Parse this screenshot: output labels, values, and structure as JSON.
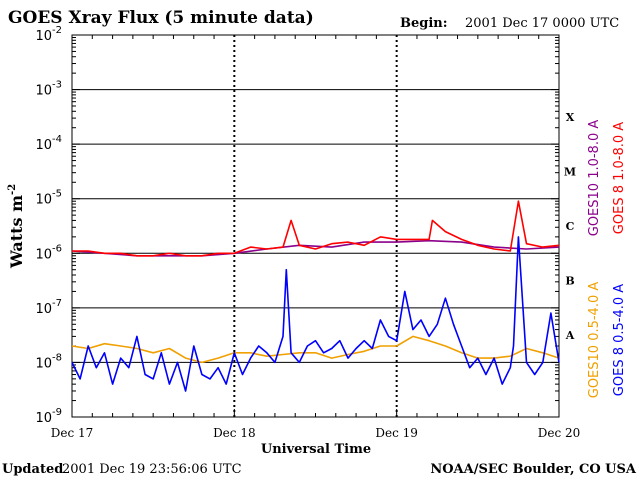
{
  "chart_data": {
    "type": "line",
    "title": "GOES Xray Flux (5 minute data)",
    "begin_label": "Begin:",
    "begin_value": "2001 Dec 17 0000 UTC",
    "xlabel": "Universal Time",
    "ylabel": "Watts m",
    "ylabel_sup": "-2",
    "x_tick_labels": [
      "Dec 17",
      "Dec 18",
      "Dec 19",
      "Dec 20"
    ],
    "xlim": [
      "2001-12-17T00:00",
      "2001-12-20T00:00"
    ],
    "y_scale": "log",
    "ylim": [
      1e-09,
      0.01
    ],
    "y_ticks": [
      {
        "base": "10",
        "exp": "-2"
      },
      {
        "base": "10",
        "exp": "-3"
      },
      {
        "base": "10",
        "exp": "-4"
      },
      {
        "base": "10",
        "exp": "-5"
      },
      {
        "base": "10",
        "exp": "-6"
      },
      {
        "base": "10",
        "exp": "-7"
      },
      {
        "base": "10",
        "exp": "-8"
      },
      {
        "base": "10",
        "exp": "-9"
      }
    ],
    "flare_classes": [
      {
        "label": "X",
        "min": 0.0001,
        "max": 0.001
      },
      {
        "label": "M",
        "min": 1e-05,
        "max": 0.0001
      },
      {
        "label": "C",
        "min": 1e-06,
        "max": 1e-05
      },
      {
        "label": "B",
        "min": 1e-07,
        "max": 1e-06
      },
      {
        "label": "A",
        "min": 1e-08,
        "max": 1e-07
      }
    ],
    "grid": "horizontal lines at each decade from 1e-8 to 1e-3; dashed vertical lines at day boundaries",
    "series": [
      {
        "name": "GOES10 1.0-8.0 A",
        "color": "#8b008b",
        "x_day": [
          0,
          0.2,
          0.4,
          0.6,
          0.8,
          1.0,
          1.2,
          1.4,
          1.6,
          1.8,
          2.0,
          2.2,
          2.4,
          2.6,
          2.8,
          3.0
        ],
        "y": [
          1.1e-06,
          1e-06,
          9e-07,
          9e-07,
          9e-07,
          1e-06,
          1.2e-06,
          1.4e-06,
          1.3e-06,
          1.6e-06,
          1.6e-06,
          1.7e-06,
          1.6e-06,
          1.3e-06,
          1.2e-06,
          1.3e-06
        ]
      },
      {
        "name": "GOES 8 1.0-8.0 A",
        "color": "#ff0000",
        "x_day": [
          0,
          0.1,
          0.2,
          0.3,
          0.4,
          0.5,
          0.6,
          0.7,
          0.8,
          0.9,
          1.0,
          1.1,
          1.2,
          1.3,
          1.35,
          1.4,
          1.5,
          1.6,
          1.7,
          1.8,
          1.9,
          2.0,
          2.1,
          2.2,
          2.22,
          2.3,
          2.4,
          2.5,
          2.6,
          2.7,
          2.75,
          2.8,
          2.9,
          3.0
        ],
        "y": [
          1.1e-06,
          1.1e-06,
          1e-06,
          1e-06,
          9e-07,
          9e-07,
          1e-06,
          9e-07,
          9e-07,
          1e-06,
          1e-06,
          1.3e-06,
          1.2e-06,
          1.3e-06,
          4e-06,
          1.4e-06,
          1.2e-06,
          1.5e-06,
          1.6e-06,
          1.4e-06,
          2e-06,
          1.8e-06,
          1.8e-06,
          1.8e-06,
          4e-06,
          2.5e-06,
          1.8e-06,
          1.4e-06,
          1.2e-06,
          1.1e-06,
          9e-06,
          1.5e-06,
          1.3e-06,
          1.4e-06
        ]
      },
      {
        "name": "GOES10 0.5-4.0 A",
        "color": "#f0a000",
        "x_day": [
          0,
          0.1,
          0.2,
          0.3,
          0.4,
          0.5,
          0.6,
          0.7,
          0.8,
          0.9,
          1.0,
          1.1,
          1.2,
          1.3,
          1.4,
          1.5,
          1.6,
          1.7,
          1.8,
          1.9,
          2.0,
          2.1,
          2.2,
          2.3,
          2.4,
          2.5,
          2.6,
          2.7,
          2.8,
          2.9,
          3.0
        ],
        "y": [
          2e-08,
          1.8e-08,
          2.2e-08,
          2e-08,
          1.8e-08,
          1.5e-08,
          1.8e-08,
          1.2e-08,
          1e-08,
          1.2e-08,
          1.5e-08,
          1.5e-08,
          1.3e-08,
          1.4e-08,
          1.5e-08,
          1.5e-08,
          1.2e-08,
          1.4e-08,
          1.6e-08,
          2e-08,
          2e-08,
          3e-08,
          2.5e-08,
          2e-08,
          1.5e-08,
          1.2e-08,
          1.2e-08,
          1.3e-08,
          1.8e-08,
          1.5e-08,
          1.2e-08
        ]
      },
      {
        "name": "GOES 8 0.5-4.0 A",
        "color": "#0000ff",
        "x_day": [
          0,
          0.05,
          0.1,
          0.15,
          0.2,
          0.25,
          0.3,
          0.35,
          0.4,
          0.45,
          0.5,
          0.55,
          0.6,
          0.65,
          0.7,
          0.75,
          0.8,
          0.85,
          0.9,
          0.95,
          1.0,
          1.05,
          1.1,
          1.15,
          1.2,
          1.25,
          1.3,
          1.32,
          1.35,
          1.4,
          1.45,
          1.5,
          1.55,
          1.6,
          1.65,
          1.7,
          1.75,
          1.8,
          1.85,
          1.9,
          1.95,
          2.0,
          2.05,
          2.1,
          2.15,
          2.2,
          2.25,
          2.3,
          2.35,
          2.4,
          2.45,
          2.5,
          2.55,
          2.6,
          2.65,
          2.7,
          2.72,
          2.75,
          2.8,
          2.85,
          2.9,
          2.95,
          3.0
        ],
        "y": [
          1e-08,
          5e-09,
          2e-08,
          8e-09,
          1.5e-08,
          4e-09,
          1.2e-08,
          8e-09,
          3e-08,
          6e-09,
          5e-09,
          1.5e-08,
          4e-09,
          1e-08,
          3e-09,
          2e-08,
          6e-09,
          5e-09,
          8e-09,
          4e-09,
          1.5e-08,
          6e-09,
          1.2e-08,
          2e-08,
          1.5e-08,
          1e-08,
          3e-08,
          5e-07,
          1.5e-08,
          1e-08,
          2e-08,
          2.5e-08,
          1.5e-08,
          1.8e-08,
          2.5e-08,
          1.2e-08,
          1.8e-08,
          2.5e-08,
          1.8e-08,
          6e-08,
          3e-08,
          2.5e-08,
          2e-07,
          4e-08,
          6e-08,
          3e-08,
          5e-08,
          1.5e-07,
          5e-08,
          2e-08,
          8e-09,
          1.2e-08,
          6e-09,
          1.2e-08,
          4e-09,
          8e-09,
          2e-08,
          2e-06,
          1e-08,
          6e-09,
          1e-08,
          8e-08,
          1e-08
        ]
      }
    ],
    "legend_placement": "right side, vertical text"
  },
  "footer": {
    "updated_label": "Updated",
    "updated_value": "2001 Dec 19 23:56:06 UTC",
    "source": "NOAA/SEC Boulder, CO USA"
  }
}
